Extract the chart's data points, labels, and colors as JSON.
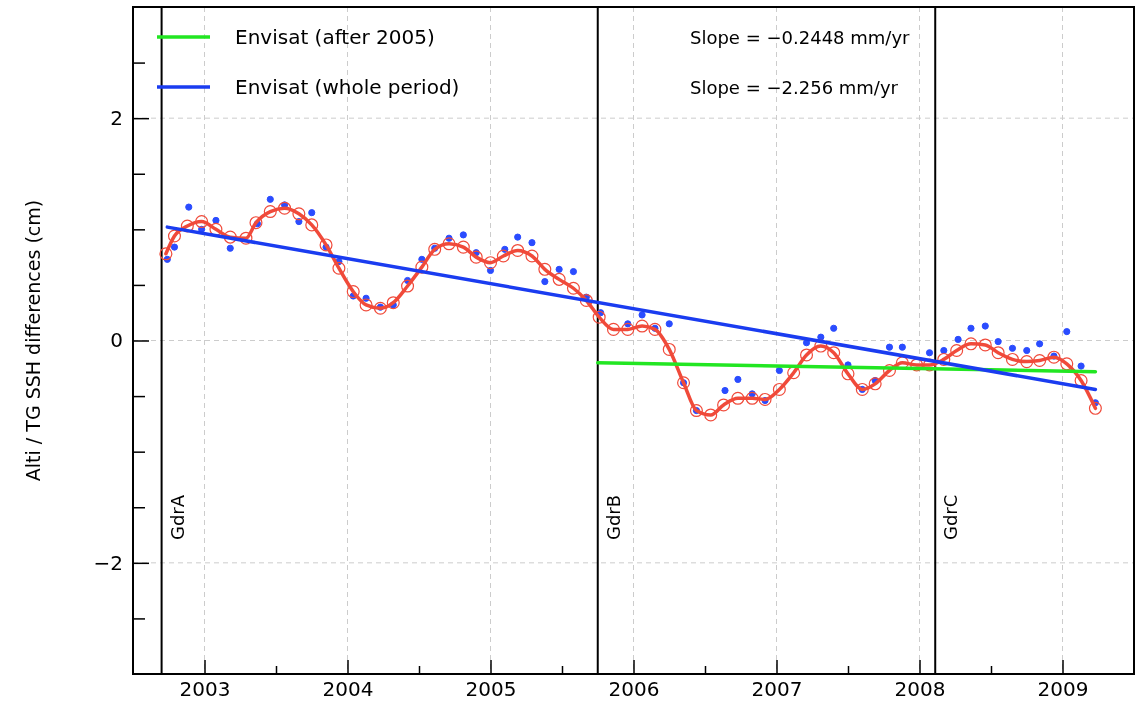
{
  "chart_data": {
    "type": "line",
    "ylabel": "Alti / TG SSH differences (cm)",
    "xlim": [
      2002.5,
      2009.5
    ],
    "xticks": [
      2003,
      {
        "value": 2003.5,
        "label": null
      },
      2004,
      {
        "value": 2004.5,
        "label": null
      },
      2005,
      {
        "value": 2005.5,
        "label": null
      },
      2006,
      {
        "value": 2006.5,
        "label": null
      },
      2007,
      {
        "value": 2007.5,
        "label": null
      },
      2008,
      {
        "value": 2008.5,
        "label": null
      },
      2009
    ],
    "ylim": [
      -3,
      3
    ],
    "yticks": [
      {
        "value": -2.5,
        "label": null
      },
      -2,
      {
        "value": -1.5,
        "label": null
      },
      {
        "value": -1,
        "label": null
      },
      {
        "value": -0.5,
        "label": null
      },
      0,
      {
        "value": 0.5,
        "label": null
      },
      {
        "value": 1,
        "label": null
      },
      {
        "value": 1.5,
        "label": null
      },
      2,
      {
        "value": 2.5,
        "label": null
      }
    ],
    "grid": true,
    "legend": "top left",
    "annotations": [
      "Slope = −0.2448 mm/yr",
      "Slope = −2.256 mm/yr"
    ],
    "ref_lines": [
      {
        "axis": "x",
        "value": 2002.7,
        "label": "GdrA",
        "color": "#000000"
      },
      {
        "axis": "x",
        "value": 2005.75,
        "label": "GdrB",
        "color": "#000000"
      },
      {
        "axis": "x",
        "value": 2008.11,
        "label": "GdrC",
        "color": "#000000"
      }
    ],
    "series": [
      {
        "type": "scatter",
        "color": "#2a4cff",
        "marker": "circle",
        "x": [
          2002.74,
          2002.79,
          2002.89,
          2002.98,
          2003.08,
          2003.18,
          2003.37,
          2003.46,
          2003.56,
          2003.66,
          2003.75,
          2003.85,
          2003.94,
          2004.04,
          2004.13,
          2004.23,
          2004.32,
          2004.42,
          2004.52,
          2004.61,
          2004.71,
          2004.81,
          2004.9,
          2005.0,
          2005.1,
          2005.19,
          2005.29,
          2005.38,
          2005.48,
          2005.58,
          2005.67,
          2005.77,
          2005.96,
          2006.06,
          2006.15,
          2006.25,
          2006.35,
          2006.44,
          2006.64,
          2006.73,
          2006.83,
          2006.92,
          2007.02,
          2007.21,
          2007.31,
          2007.4,
          2007.5,
          2007.6,
          2007.69,
          2007.79,
          2007.88,
          2008.07,
          2008.17,
          2008.27,
          2008.36,
          2008.46,
          2008.55,
          2008.65,
          2008.75,
          2008.84,
          2008.94,
          2009.03,
          2009.13,
          2009.23
        ],
        "values": [
          0.73,
          0.84,
          1.2,
          1.0,
          1.08,
          0.83,
          1.05,
          1.27,
          1.22,
          1.07,
          1.15,
          0.84,
          0.71,
          0.4,
          0.38,
          0.3,
          0.32,
          0.54,
          0.73,
          0.83,
          0.92,
          0.95,
          0.79,
          0.63,
          0.82,
          0.93,
          0.88,
          0.53,
          0.64,
          0.62,
          0.39,
          0.25,
          0.15,
          0.23,
          0.11,
          0.15,
          -0.38,
          -0.63,
          -0.45,
          -0.35,
          -0.48,
          -0.54,
          -0.27,
          -0.02,
          0.03,
          0.11,
          -0.22,
          -0.44,
          -0.36,
          -0.06,
          -0.06,
          -0.11,
          -0.09,
          0.01,
          0.11,
          0.13,
          -0.01,
          -0.07,
          -0.09,
          -0.03,
          -0.14,
          0.08,
          -0.23,
          -0.56
        ]
      },
      {
        "color": "#f04a3a",
        "marker": "circle",
        "x": [
          2002.73,
          2002.79,
          2002.88,
          2002.98,
          2003.08,
          2003.18,
          2003.29,
          2003.36,
          2003.46,
          2003.56,
          2003.66,
          2003.75,
          2003.85,
          2003.94,
          2004.04,
          2004.13,
          2004.23,
          2004.32,
          2004.42,
          2004.52,
          2004.61,
          2004.71,
          2004.81,
          2004.9,
          2005.0,
          2005.09,
          2005.19,
          2005.29,
          2005.38,
          2005.48,
          2005.58,
          2005.67,
          2005.76,
          2005.86,
          2005.96,
          2006.06,
          2006.15,
          2006.25,
          2006.35,
          2006.44,
          2006.54,
          2006.63,
          2006.73,
          2006.83,
          2006.92,
          2007.02,
          2007.12,
          2007.21,
          2007.31,
          2007.4,
          2007.5,
          2007.6,
          2007.69,
          2007.79,
          2007.88,
          2007.98,
          2008.07,
          2008.17,
          2008.26,
          2008.36,
          2008.46,
          2008.55,
          2008.65,
          2008.75,
          2008.84,
          2008.94,
          2009.03,
          2009.13,
          2009.23
        ],
        "values": [
          0.78,
          0.94,
          1.03,
          1.07,
          1.0,
          0.93,
          0.92,
          1.06,
          1.16,
          1.19,
          1.14,
          1.04,
          0.86,
          0.65,
          0.44,
          0.32,
          0.29,
          0.34,
          0.49,
          0.66,
          0.82,
          0.87,
          0.84,
          0.75,
          0.7,
          0.76,
          0.81,
          0.76,
          0.64,
          0.55,
          0.47,
          0.36,
          0.21,
          0.1,
          0.1,
          0.13,
          0.1,
          -0.08,
          -0.38,
          -0.63,
          -0.67,
          -0.58,
          -0.52,
          -0.52,
          -0.53,
          -0.44,
          -0.29,
          -0.13,
          -0.05,
          -0.11,
          -0.3,
          -0.44,
          -0.39,
          -0.27,
          -0.2,
          -0.22,
          -0.22,
          -0.17,
          -0.09,
          -0.03,
          -0.04,
          -0.11,
          -0.17,
          -0.19,
          -0.18,
          -0.15,
          -0.21,
          -0.36,
          -0.61
        ]
      },
      {
        "name": "Envisat (after 2005)",
        "color": "#22e622",
        "marker": "none",
        "x": [
          2005.75,
          2009.23
        ],
        "values": [
          -0.2,
          -0.28
        ]
      },
      {
        "name": "Envisat (whole period)",
        "color": "#1a3cf0",
        "marker": "none",
        "x": [
          2002.74,
          2009.23
        ],
        "values": [
          1.02,
          -0.44
        ]
      }
    ]
  }
}
